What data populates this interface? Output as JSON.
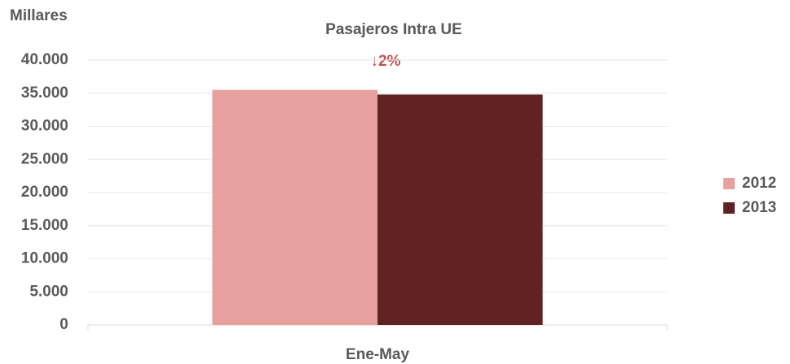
{
  "chart_data": {
    "type": "bar",
    "title": "Pasajeros Intra UE",
    "y_axis_label": "Millares",
    "annotation": "↓2%",
    "categories": [
      "Ene-May"
    ],
    "series": [
      {
        "name": "2012",
        "color": "#e6a09e",
        "values": [
          35500
        ]
      },
      {
        "name": "2013",
        "color": "#612222",
        "values": [
          34800
        ]
      }
    ],
    "ylim": [
      0,
      40000
    ],
    "yticks": [
      0,
      {
        "value": 5000,
        "label": "5.000"
      },
      {
        "value": 10000,
        "label": "10.000"
      },
      {
        "value": 15000,
        "label": "15.000"
      },
      {
        "value": 20000,
        "label": "20.000"
      },
      {
        "value": 25000,
        "label": "25.000"
      },
      {
        "value": 30000,
        "label": "30.000"
      },
      {
        "value": 35000,
        "label": "35.000"
      },
      {
        "value": 40000,
        "label": "40.000"
      }
    ],
    "grid": true,
    "legend": "right"
  }
}
